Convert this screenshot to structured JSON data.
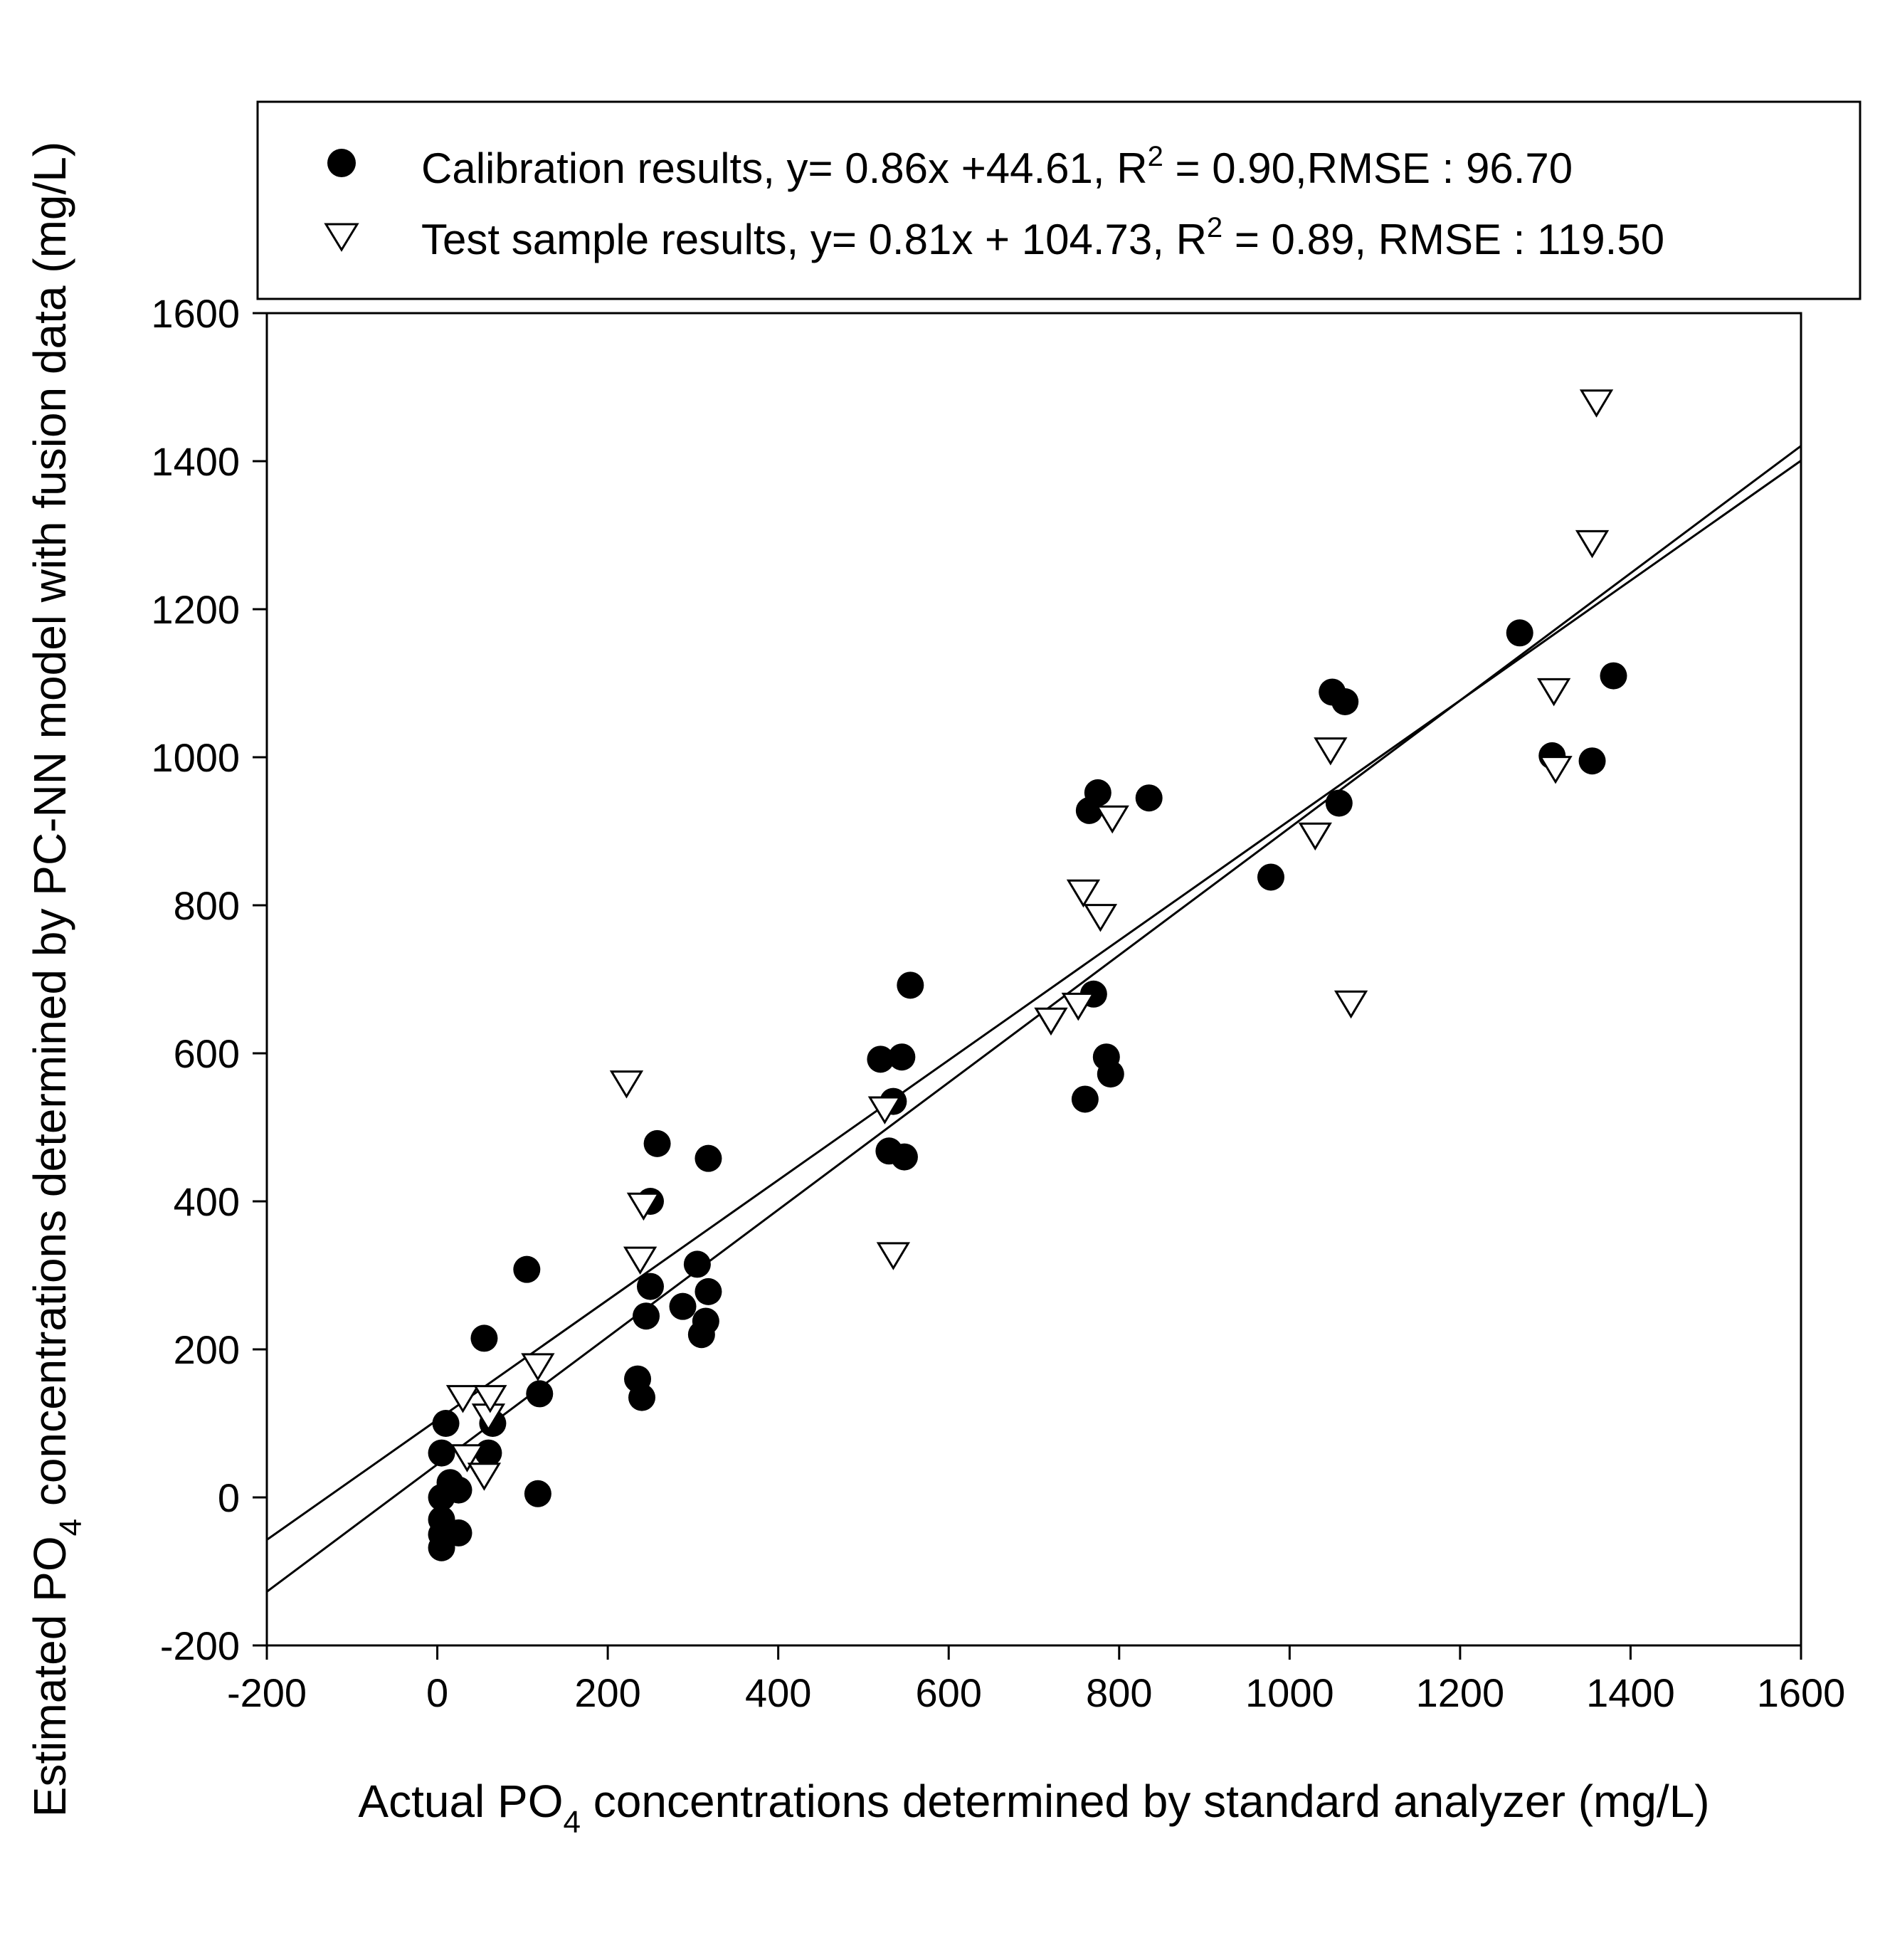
{
  "chart_data": {
    "type": "scatter",
    "title": "",
    "xlabel": {
      "prefix": "Actual PO",
      "subscript": "4",
      "suffix": " concentrations determined by standard analyzer (mg/L)"
    },
    "ylabel": {
      "prefix": "Estimated PO",
      "subscript": "4",
      "suffix": " concentrations determined by PC-NN model with fusion data (mg/L)"
    },
    "xlim": [
      -200,
      1600
    ],
    "ylim": [
      -200,
      1600
    ],
    "xticks": [
      -200,
      0,
      200,
      400,
      600,
      800,
      1000,
      1200,
      1400,
      1600
    ],
    "yticks": [
      -200,
      0,
      200,
      400,
      600,
      800,
      1000,
      1200,
      1400,
      1600
    ],
    "grid": false,
    "legend_position": "top",
    "series": [
      {
        "name": "Calibration results",
        "legend": {
          "before_sup": "Calibration results, y= 0.86x +44.61, R",
          "sup": "2",
          "after_sup": " = 0.90,RMSE : 96.70"
        },
        "marker": "filled-circle",
        "fit": {
          "slope": 0.86,
          "intercept": 44.61
        },
        "points": [
          [
            5,
            -30
          ],
          [
            5,
            -50
          ],
          [
            5,
            -68
          ],
          [
            5,
            0
          ],
          [
            5,
            60
          ],
          [
            10,
            100
          ],
          [
            15,
            20
          ],
          [
            25,
            10
          ],
          [
            25,
            -48
          ],
          [
            55,
            215
          ],
          [
            60,
            60
          ],
          [
            65,
            100
          ],
          [
            105,
            308
          ],
          [
            120,
            140
          ],
          [
            118,
            5
          ],
          [
            235,
            160
          ],
          [
            240,
            135
          ],
          [
            245,
            245
          ],
          [
            250,
            285
          ],
          [
            250,
            400
          ],
          [
            258,
            478
          ],
          [
            288,
            258
          ],
          [
            305,
            315
          ],
          [
            310,
            220
          ],
          [
            315,
            238
          ],
          [
            318,
            278
          ],
          [
            318,
            458
          ],
          [
            520,
            592
          ],
          [
            530,
            468
          ],
          [
            535,
            535
          ],
          [
            545,
            595
          ],
          [
            548,
            460
          ],
          [
            555,
            692
          ],
          [
            760,
            538
          ],
          [
            765,
            928
          ],
          [
            770,
            680
          ],
          [
            775,
            952
          ],
          [
            785,
            595
          ],
          [
            790,
            572
          ],
          [
            835,
            945
          ],
          [
            978,
            838
          ],
          [
            1050,
            1088
          ],
          [
            1058,
            938
          ],
          [
            1065,
            1075
          ],
          [
            1270,
            1168
          ],
          [
            1308,
            1002
          ],
          [
            1355,
            995
          ],
          [
            1380,
            1110
          ]
        ]
      },
      {
        "name": "Test sample results",
        "legend": {
          "before_sup": "Test sample results, y= 0.81x + 104.73, R",
          "sup": "2",
          "after_sup": " = 0.89, RMSE : 119.50"
        },
        "marker": "open-triangle-down",
        "fit": {
          "slope": 0.81,
          "intercept": 104.73
        },
        "points": [
          [
            30,
            135
          ],
          [
            35,
            55
          ],
          [
            55,
            30
          ],
          [
            60,
            110
          ],
          [
            62,
            135
          ],
          [
            118,
            178
          ],
          [
            222,
            560
          ],
          [
            238,
            322
          ],
          [
            242,
            395
          ],
          [
            525,
            525
          ],
          [
            535,
            328
          ],
          [
            720,
            645
          ],
          [
            752,
            665
          ],
          [
            758,
            818
          ],
          [
            778,
            785
          ],
          [
            792,
            918
          ],
          [
            1030,
            895
          ],
          [
            1048,
            1010
          ],
          [
            1072,
            668
          ],
          [
            1310,
            1090
          ],
          [
            1312,
            985
          ],
          [
            1355,
            1290
          ],
          [
            1360,
            1480
          ]
        ]
      }
    ]
  }
}
